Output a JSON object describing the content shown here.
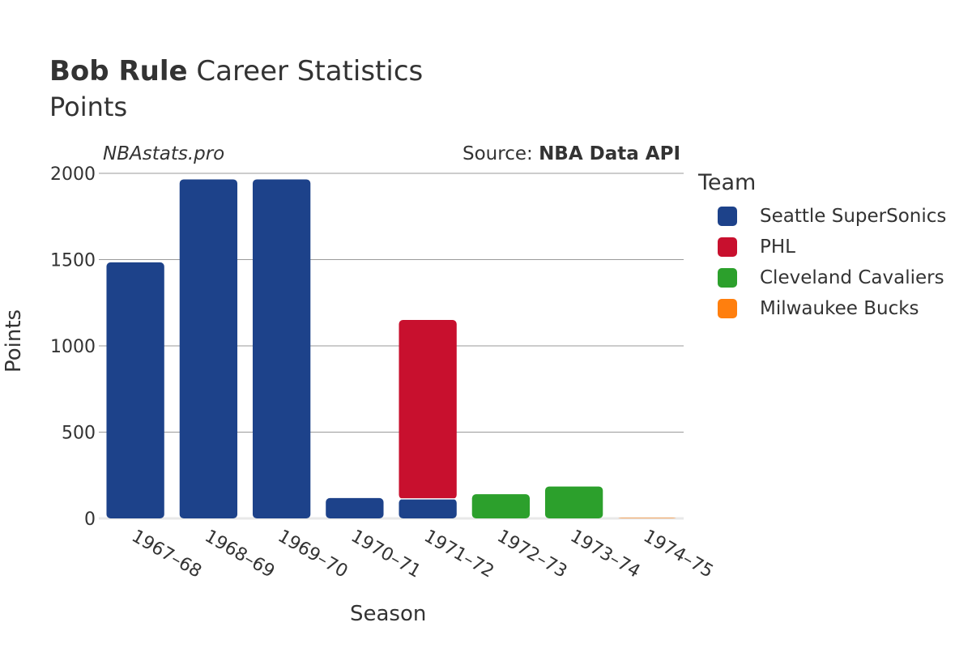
{
  "header": {
    "title_bold": "Bob Rule",
    "title_rest": " Career Statistics",
    "subtitle": "Points",
    "watermark": "NBAstats.pro",
    "source_prefix": "Source: ",
    "source_name": "NBA Data API"
  },
  "legend": {
    "title": "Team",
    "items": [
      {
        "label": "Seattle SuperSonics",
        "color": "#1d428a"
      },
      {
        "label": "PHL",
        "color": "#c8102e"
      },
      {
        "label": "Cleveland Cavaliers",
        "color": "#2ca02c"
      },
      {
        "label": "Milwaukee Bucks",
        "color": "#ff7f0e"
      }
    ]
  },
  "chart_data": {
    "type": "bar",
    "stacked": true,
    "xlabel": "Season",
    "ylabel": "Points",
    "ylim": [
      0,
      2000
    ],
    "yticks": [
      0,
      500,
      1000,
      1500,
      2000
    ],
    "grid": true,
    "legend_position": "right",
    "categories": [
      "1967–68",
      "1968–69",
      "1969–70",
      "1970–71",
      "1971–72",
      "1972–73",
      "1973–74",
      "1974–75"
    ],
    "series": [
      {
        "name": "Seattle SuperSonics",
        "color": "#1d428a",
        "values": [
          1484,
          1965,
          1965,
          118,
          113,
          0,
          0,
          0
        ]
      },
      {
        "name": "PHL",
        "color": "#c8102e",
        "values": [
          0,
          0,
          0,
          0,
          1037,
          0,
          0,
          0
        ]
      },
      {
        "name": "Cleveland Cavaliers",
        "color": "#2ca02c",
        "values": [
          0,
          0,
          0,
          0,
          0,
          140,
          185,
          0
        ]
      },
      {
        "name": "Milwaukee Bucks",
        "color": "#ff7f0e",
        "values": [
          0,
          0,
          0,
          0,
          0,
          0,
          0,
          3
        ]
      }
    ]
  }
}
